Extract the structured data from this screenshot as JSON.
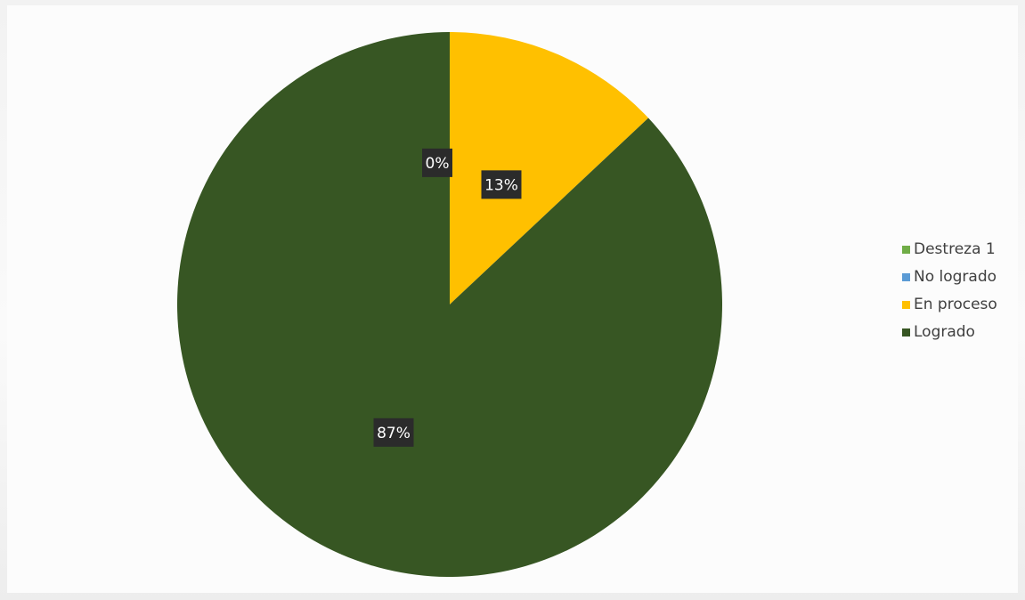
{
  "chart_data": {
    "type": "pie",
    "title": "",
    "categories": [
      "Destreza 1",
      "No logrado",
      "En proceso",
      "Logrado"
    ],
    "values": [
      0,
      0,
      13,
      87
    ],
    "data_labels": [
      "",
      "0%",
      "13%",
      "87%"
    ],
    "colors": [
      "#70ad47",
      "#5b9bd5",
      "#ffc000",
      "#375623"
    ],
    "legend": {
      "position": "right",
      "entries": [
        "Destreza 1",
        "No logrado",
        "En proceso",
        "Logrado"
      ]
    },
    "start_angle": "12 o'clock, clockwise"
  }
}
